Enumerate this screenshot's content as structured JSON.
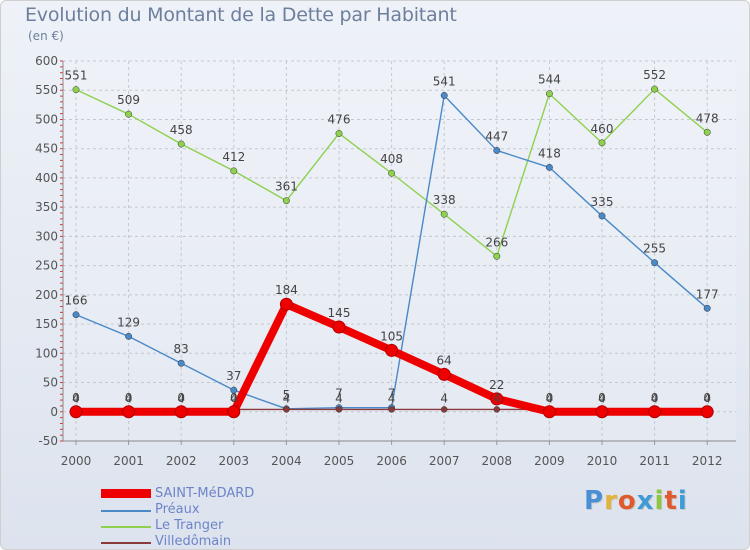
{
  "title": "Evolution du Montant de la Dette par Habitant",
  "subtitle": "(en €)",
  "logo_text": "Proxiti",
  "logo_colors": [
    "#4a8fd6",
    "#e2b23a",
    "#df5b2f",
    "#3e9bd8",
    "#8dc63f",
    "#df5b2f",
    "#3e9bd8"
  ],
  "chart_data": {
    "type": "line",
    "x": [
      "2000",
      "2001",
      "2002",
      "2003",
      "2004",
      "2005",
      "2006",
      "2007",
      "2008",
      "2009",
      "2010",
      "2011",
      "2012"
    ],
    "ylim": [
      -50,
      600
    ],
    "yticks": [
      -50,
      0,
      50,
      100,
      150,
      200,
      250,
      300,
      350,
      400,
      450,
      500,
      550,
      600
    ],
    "grid": true,
    "legend_position": "bottom-left",
    "series": [
      {
        "name": "SAINT-MéDARD",
        "color": "#ee0000",
        "values": [
          0,
          0,
          0,
          0,
          184,
          145,
          105,
          64,
          22,
          0,
          0,
          0,
          0
        ]
      },
      {
        "name": "Préaux",
        "color": "#4a89c8",
        "values": [
          166,
          129,
          83,
          37,
          5,
          7,
          7,
          541,
          447,
          418,
          335,
          255,
          177
        ]
      },
      {
        "name": "Le Tranger",
        "color": "#8dd14e",
        "values": [
          551,
          509,
          458,
          412,
          361,
          476,
          408,
          338,
          266,
          544,
          460,
          552,
          478
        ]
      },
      {
        "name": "Villedômain",
        "color": "#8a3a3a",
        "values": [
          4,
          4,
          4,
          4,
          4,
          4,
          4,
          4,
          4,
          4,
          4,
          4,
          4
        ]
      }
    ]
  }
}
